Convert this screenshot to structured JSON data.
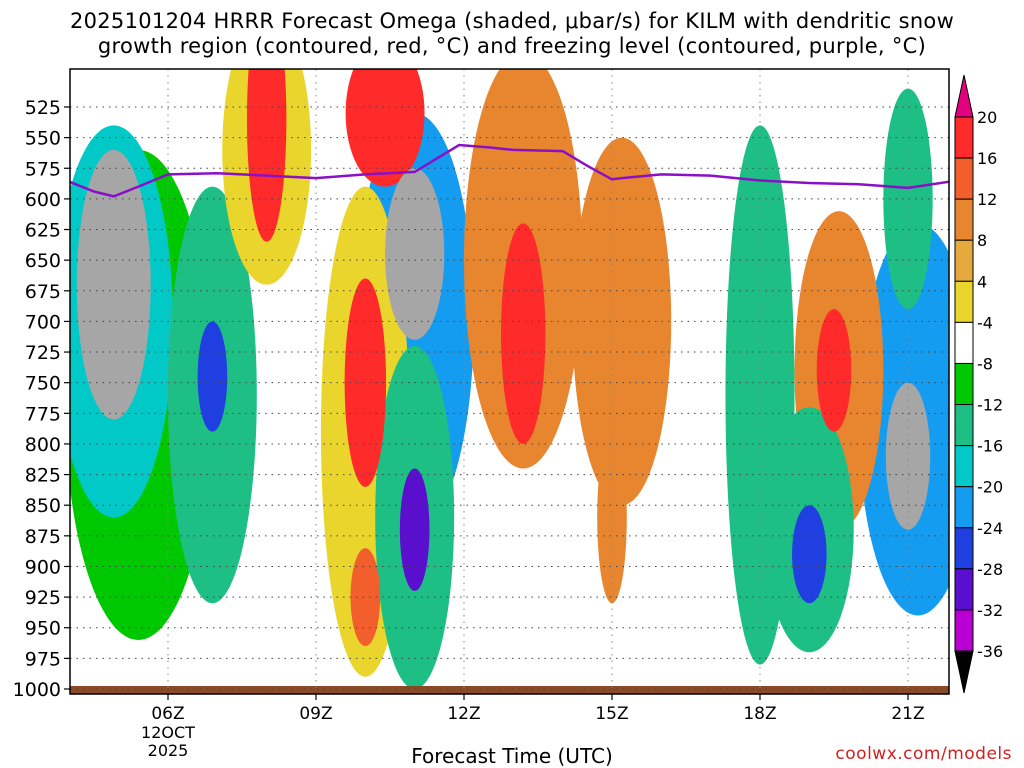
{
  "title_line1": "2025101204 HRRR Forecast Omega (shaded, μbar/s) for KILM with dendritic snow",
  "title_line2": "growth region (contoured, red, °C) and freezing level (contoured, purple, °C)",
  "credit": "coolwx.com/models",
  "chart_data": {
    "type": "heatmap",
    "title": "2025101204 HRRR Forecast Omega (shaded, μbar/s) for KILM with dendritic snow growth region (contoured, red, °C) and freezing level (contoured, purple, °C)",
    "xlabel": "Forecast Time (UTC)",
    "ylabel": "",
    "xlim": [
      4,
      22
    ],
    "ylim": [
      1000,
      500
    ],
    "x_ticks": [
      {
        "x": 6,
        "label": "06Z",
        "sub1": "12OCT",
        "sub2": "2025"
      },
      {
        "x": 9,
        "label": "09Z",
        "sub1": "",
        "sub2": ""
      },
      {
        "x": 12,
        "label": "12Z",
        "sub1": "",
        "sub2": ""
      },
      {
        "x": 15,
        "label": "15Z",
        "sub1": "",
        "sub2": ""
      },
      {
        "x": 18,
        "label": "18Z",
        "sub1": "",
        "sub2": ""
      },
      {
        "x": 21,
        "label": "21Z",
        "sub1": "",
        "sub2": ""
      }
    ],
    "y_ticks": [
      525,
      550,
      575,
      600,
      625,
      650,
      675,
      700,
      725,
      750,
      775,
      800,
      825,
      850,
      875,
      900,
      925,
      950,
      975,
      1000
    ],
    "colorbar": {
      "labels": [
        "20",
        "16",
        "12",
        "8",
        "4",
        "-4",
        "-8",
        "-12",
        "-16",
        "-20",
        "-24",
        "-28",
        "-32",
        "-36"
      ],
      "colors": [
        "#e3007f",
        "#ff2a2a",
        "#f35f2c",
        "#e8862f",
        "#e5a93e",
        "#ead52c",
        "#ffffff",
        "#00c800",
        "#1dbf85",
        "#00c9c8",
        "#139cf0",
        "#1f3fe0",
        "#5a0fce",
        "#b800d2",
        "#a6a6a6",
        "#000000"
      ]
    },
    "grid": true,
    "freezing_level": {
      "x": [
        4.0,
        4.5,
        4.9,
        5.4,
        6.0,
        7.0,
        8.0,
        9.0,
        10.0,
        11.0,
        11.9,
        12.5,
        13.0,
        14.0,
        14.5,
        15.0,
        15.2,
        16.0,
        17.0,
        18.0,
        19.0,
        20.0,
        21.0,
        22.0
      ],
      "p": [
        586,
        594,
        598,
        590,
        580,
        579,
        581,
        583,
        580,
        578,
        556,
        558,
        560,
        561,
        573,
        584,
        583,
        580,
        581,
        585,
        587,
        588,
        591,
        585
      ]
    },
    "cells": [
      {
        "x": 4.9,
        "p": 670,
        "v": -34,
        "dx": 0.75,
        "dp": 110
      },
      {
        "x": 4.9,
        "p": 700,
        "v": -14,
        "dx": 1.2,
        "dp": 160
      },
      {
        "x": 5.4,
        "p": 760,
        "v": -8,
        "dx": 1.5,
        "dp": 200
      },
      {
        "x": 6.9,
        "p": 745,
        "v": -22,
        "dx": 0.3,
        "dp": 45
      },
      {
        "x": 6.9,
        "p": 760,
        "v": -10,
        "dx": 0.9,
        "dp": 170
      },
      {
        "x": 8.0,
        "p": 535,
        "v": 18,
        "dx": 0.4,
        "dp": 100
      },
      {
        "x": 8.0,
        "p": 560,
        "v": 6,
        "dx": 0.9,
        "dp": 110
      },
      {
        "x": 10.0,
        "p": 750,
        "v": 17,
        "dx": 0.42,
        "dp": 85
      },
      {
        "x": 10.0,
        "p": 790,
        "v": 6,
        "dx": 0.9,
        "dp": 200
      },
      {
        "x": 10.0,
        "p": 925,
        "v": 14,
        "dx": 0.3,
        "dp": 40
      },
      {
        "x": 10.4,
        "p": 530,
        "v": 18,
        "dx": 0.8,
        "dp": 60
      },
      {
        "x": 11.0,
        "p": 645,
        "v": -34,
        "dx": 0.6,
        "dp": 70
      },
      {
        "x": 11.0,
        "p": 700,
        "v": -18,
        "dx": 1.2,
        "dp": 170
      },
      {
        "x": 11.0,
        "p": 870,
        "v": -28,
        "dx": 0.3,
        "dp": 50
      },
      {
        "x": 11.0,
        "p": 860,
        "v": -10,
        "dx": 0.8,
        "dp": 140
      },
      {
        "x": 13.2,
        "p": 710,
        "v": 17,
        "dx": 0.45,
        "dp": 90
      },
      {
        "x": 13.2,
        "p": 650,
        "v": 8,
        "dx": 1.2,
        "dp": 170
      },
      {
        "x": 15.0,
        "p": 860,
        "v": 10,
        "dx": 0.3,
        "dp": 70
      },
      {
        "x": 15.2,
        "p": 700,
        "v": 8,
        "dx": 1.0,
        "dp": 150
      },
      {
        "x": 18.0,
        "p": 760,
        "v": -10,
        "dx": 0.7,
        "dp": 220
      },
      {
        "x": 19.0,
        "p": 890,
        "v": -24,
        "dx": 0.35,
        "dp": 40
      },
      {
        "x": 19.0,
        "p": 870,
        "v": -10,
        "dx": 0.9,
        "dp": 100
      },
      {
        "x": 19.5,
        "p": 740,
        "v": 18,
        "dx": 0.35,
        "dp": 50
      },
      {
        "x": 19.6,
        "p": 740,
        "v": 8,
        "dx": 0.9,
        "dp": 130
      },
      {
        "x": 21.0,
        "p": 810,
        "v": -34,
        "dx": 0.45,
        "dp": 60
      },
      {
        "x": 21.2,
        "p": 780,
        "v": -18,
        "dx": 1.2,
        "dp": 160
      },
      {
        "x": 21.0,
        "p": 600,
        "v": -12,
        "dx": 0.5,
        "dp": 90
      }
    ]
  }
}
